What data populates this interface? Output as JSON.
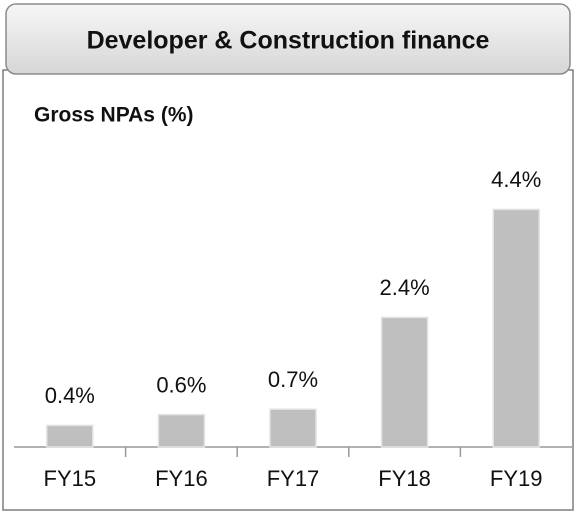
{
  "chart_data": {
    "type": "bar",
    "title": "Developer & Construction finance",
    "subtitle": "Gross NPAs (%)",
    "categories": [
      "FY15",
      "FY16",
      "FY17",
      "FY18",
      "FY19"
    ],
    "values": [
      0.4,
      0.6,
      0.7,
      2.4,
      4.4
    ],
    "value_labels": [
      "0.4%",
      "0.6%",
      "0.7%",
      "2.4%",
      "4.4%"
    ],
    "color": "#bfbfbf"
  }
}
